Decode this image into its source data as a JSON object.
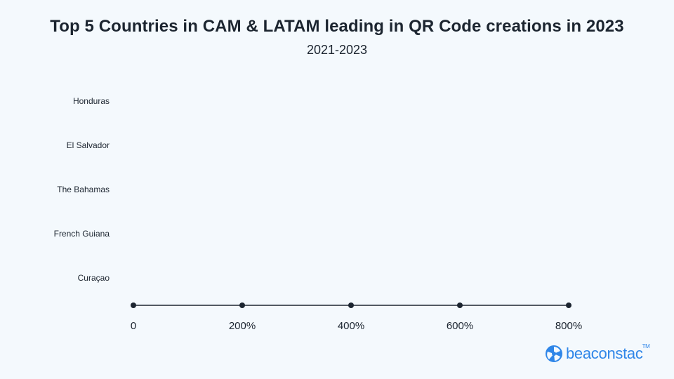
{
  "chart_data": {
    "type": "bar",
    "title": "Top 5 Countries in CAM & LATAM leading in QR Code creations in 2023",
    "subtitle": "2021-2023",
    "orientation": "horizontal",
    "categories": [
      "Honduras",
      "El Salvador",
      "The Bahamas",
      "French Guiana",
      "Curaçao"
    ],
    "values": [
      null,
      null,
      null,
      null,
      null
    ],
    "x_ticks": [
      "0",
      "200%",
      "400%",
      "600%",
      "800%"
    ],
    "x_tick_values": [
      0,
      200,
      400,
      600,
      800
    ],
    "xlim": [
      0,
      800
    ],
    "xlabel": "",
    "ylabel": "",
    "grid": false,
    "colors": {
      "axis": "#1c2530",
      "text": "#1c2530",
      "background": "#f4f9fd",
      "brand": "#2f86e8"
    }
  },
  "brand": {
    "logo_text": "beaconstac",
    "trademark": "TM",
    "logo_icon": "beaconstac-logo-icon"
  }
}
